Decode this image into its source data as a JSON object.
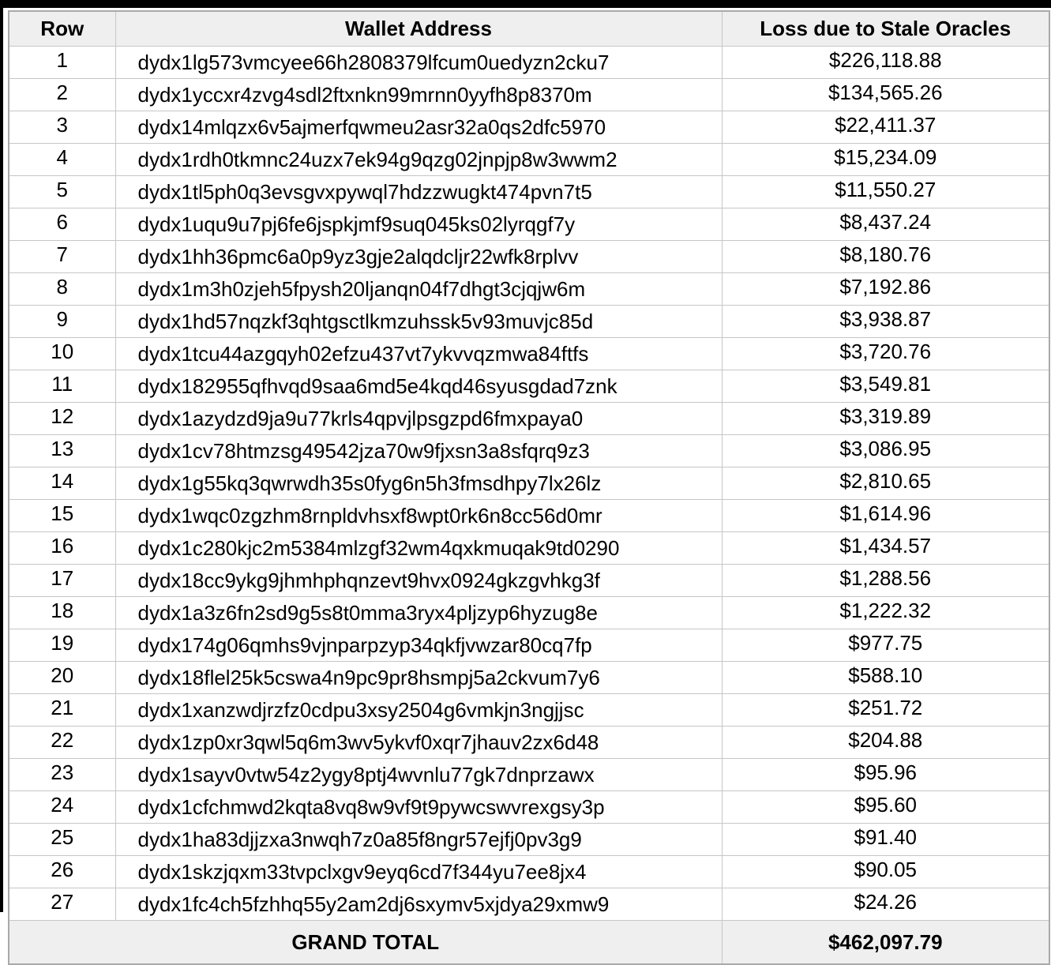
{
  "colors": {
    "header_bg": "#efefef",
    "total_bg": "#efefef",
    "border": "#c6c6c6",
    "frame": "#000000"
  },
  "table": {
    "columns": [
      {
        "label": "Row"
      },
      {
        "label": "Wallet Address"
      },
      {
        "label": "Loss due to Stale Oracles"
      }
    ],
    "rows": [
      {
        "row": "1",
        "address": "dydx1lg573vmcyee66h2808379lfcum0uedyzn2cku7",
        "loss": "$226,118.88"
      },
      {
        "row": "2",
        "address": "dydx1yccxr4zvg4sdl2ftxnkn99mrnn0yyfh8p8370m",
        "loss": "$134,565.26"
      },
      {
        "row": "3",
        "address": "dydx14mlqzx6v5ajmerfqwmeu2asr32a0qs2dfc5970",
        "loss": "$22,411.37"
      },
      {
        "row": "4",
        "address": "dydx1rdh0tkmnc24uzx7ek94g9qzg02jnpjp8w3wwm2",
        "loss": "$15,234.09"
      },
      {
        "row": "5",
        "address": "dydx1tl5ph0q3evsgvxpywql7hdzzwugkt474pvn7t5",
        "loss": "$11,550.27"
      },
      {
        "row": "6",
        "address": "dydx1uqu9u7pj6fe6jspkjmf9suq045ks02lyrqgf7y",
        "loss": "$8,437.24"
      },
      {
        "row": "7",
        "address": "dydx1hh36pmc6a0p9yz3gje2alqdcljr22wfk8rplvv",
        "loss": "$8,180.76"
      },
      {
        "row": "8",
        "address": "dydx1m3h0zjeh5fpysh20ljanqn04f7dhgt3cjqjw6m",
        "loss": "$7,192.86"
      },
      {
        "row": "9",
        "address": "dydx1hd57nqzkf3qhtgsctlkmzuhssk5v93muvjc85d",
        "loss": "$3,938.87"
      },
      {
        "row": "10",
        "address": "dydx1tcu44azgqyh02efzu437vt7ykvvqzmwa84ftfs",
        "loss": "$3,720.76"
      },
      {
        "row": "11",
        "address": "dydx182955qfhvqd9saa6md5e4kqd46syusgdad7znk",
        "loss": "$3,549.81"
      },
      {
        "row": "12",
        "address": "dydx1azydzd9ja9u77krls4qpvjlpsgzpd6fmxpaya0",
        "loss": "$3,319.89"
      },
      {
        "row": "13",
        "address": "dydx1cv78htmzsg49542jza70w9fjxsn3a8sfqrq9z3",
        "loss": "$3,086.95"
      },
      {
        "row": "14",
        "address": "dydx1g55kq3qwrwdh35s0fyg6n5h3fmsdhpy7lx26lz",
        "loss": "$2,810.65"
      },
      {
        "row": "15",
        "address": "dydx1wqc0zgzhm8rnpldvhsxf8wpt0rk6n8cc56d0mr",
        "loss": "$1,614.96"
      },
      {
        "row": "16",
        "address": "dydx1c280kjc2m5384mlzgf32wm4qxkmuqak9td0290",
        "loss": "$1,434.57"
      },
      {
        "row": "17",
        "address": "dydx18cc9ykg9jhmhphqnzevt9hvx0924gkzgvhkg3f",
        "loss": "$1,288.56"
      },
      {
        "row": "18",
        "address": "dydx1a3z6fn2sd9g5s8t0mma3ryx4pljzyp6hyzug8e",
        "loss": "$1,222.32"
      },
      {
        "row": "19",
        "address": "dydx174g06qmhs9vjnparpzyp34qkfjvwzar80cq7fp",
        "loss": "$977.75"
      },
      {
        "row": "20",
        "address": "dydx18flel25k5cswa4n9pc9pr8hsmpj5a2ckvum7y6",
        "loss": "$588.10"
      },
      {
        "row": "21",
        "address": "dydx1xanzwdjrzfz0cdpu3xsy2504g6vmkjn3ngjjsc",
        "loss": "$251.72"
      },
      {
        "row": "22",
        "address": "dydx1zp0xr3qwl5q6m3wv5ykvf0xqr7jhauv2zx6d48",
        "loss": "$204.88"
      },
      {
        "row": "23",
        "address": "dydx1sayv0vtw54z2ygy8ptj4wvnlu77gk7dnprzawx",
        "loss": "$95.96"
      },
      {
        "row": "24",
        "address": "dydx1cfchmwd2kqta8vq8w9vf9t9pywcswvrexgsy3p",
        "loss": "$95.60"
      },
      {
        "row": "25",
        "address": "dydx1ha83djjzxa3nwqh7z0a85f8ngr57ejfj0pv3g9",
        "loss": "$91.40"
      },
      {
        "row": "26",
        "address": "dydx1skzjqxm33tvpclxgv9eyq6cd7f344yu7ee8jx4",
        "loss": "$90.05"
      },
      {
        "row": "27",
        "address": "dydx1fc4ch5fzhhq55y2am2dj6sxymv5xjdya29xmw9",
        "loss": "$24.26"
      }
    ],
    "footer": {
      "label": "GRAND TOTAL",
      "total": "$462,097.79"
    }
  }
}
